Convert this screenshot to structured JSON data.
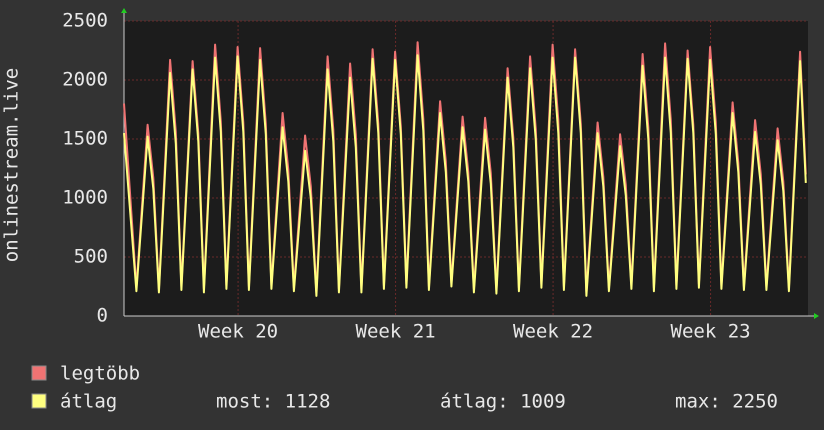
{
  "chart_data": {
    "type": "line",
    "y_label": "onlinestream.live",
    "x": [
      0,
      0.55,
      1.05,
      1.3,
      1.55,
      2.05,
      2.3,
      2.55,
      3.05,
      3.3,
      3.55,
      4.05,
      4.3,
      4.55,
      5.05,
      5.3,
      5.55,
      6.05,
      6.3,
      6.55,
      7.05,
      7.3,
      7.55,
      8.05,
      8.3,
      8.55,
      9.05,
      9.3,
      9.55,
      10.05,
      10.3,
      10.55,
      11.05,
      11.3,
      11.55,
      12.05,
      12.3,
      12.55,
      13.05,
      13.3,
      13.55,
      14.05,
      14.3,
      14.55,
      15.05,
      15.3,
      15.55,
      16.05,
      16.3,
      16.55,
      17.05,
      17.3,
      17.55,
      18.05,
      18.3,
      18.55,
      19.05,
      19.3,
      19.55,
      20.05,
      20.3,
      20.55,
      21.05,
      21.3,
      21.55,
      22.05,
      22.3,
      22.55,
      23.05,
      23.3,
      23.55,
      24.05,
      24.3,
      24.55,
      25.05,
      25.3,
      25.55,
      26.05,
      26.3,
      26.55,
      27.05,
      27.3,
      27.55,
      28.05,
      28.3,
      28.55,
      29.05,
      29.3,
      29.55,
      30.05,
      30.3
    ],
    "series": [
      {
        "name": "legtöbb",
        "color": "#f07373",
        "values": [
          1800,
          240,
          1620,
          1170,
          230,
          2170,
          1560,
          250,
          2160,
          1550,
          230,
          2300,
          1650,
          260,
          2280,
          1640,
          250,
          2270,
          1630,
          260,
          1720,
          1240,
          240,
          1530,
          1100,
          200,
          2200,
          1580,
          230,
          2140,
          1540,
          230,
          2260,
          1630,
          260,
          2240,
          1610,
          270,
          2320,
          1670,
          250,
          1820,
          1310,
          280,
          1690,
          1220,
          230,
          1680,
          1210,
          220,
          2100,
          1510,
          240,
          2200,
          1580,
          270,
          2300,
          1660,
          250,
          2260,
          1630,
          200,
          1640,
          1180,
          240,
          1540,
          1110,
          260,
          2220,
          1600,
          240,
          2310,
          1660,
          260,
          2250,
          1620,
          270,
          2280,
          1640,
          260,
          1810,
          1300,
          250,
          1660,
          1200,
          250,
          1590,
          1140,
          240,
          2240,
          1200
        ]
      },
      {
        "name": "átlag",
        "color": "#ffff80",
        "values": [
          1550,
          210,
          1520,
          1080,
          200,
          2060,
          1460,
          220,
          2090,
          1480,
          200,
          2190,
          1560,
          230,
          2200,
          1560,
          220,
          2170,
          1540,
          230,
          1600,
          1140,
          210,
          1400,
          1000,
          170,
          2090,
          1480,
          200,
          2020,
          1430,
          200,
          2180,
          1550,
          230,
          2170,
          1540,
          240,
          2210,
          1570,
          220,
          1720,
          1220,
          250,
          1600,
          1140,
          200,
          1580,
          1120,
          190,
          2020,
          1430,
          210,
          2100,
          1490,
          240,
          2190,
          1550,
          220,
          2190,
          1550,
          170,
          1550,
          1100,
          210,
          1440,
          1020,
          230,
          2120,
          1500,
          210,
          2190,
          1550,
          230,
          2180,
          1550,
          240,
          2170,
          1540,
          230,
          1720,
          1220,
          220,
          1560,
          1110,
          220,
          1490,
          1060,
          210,
          2160,
          1128
        ]
      }
    ],
    "xlim": [
      0,
      30.4
    ],
    "xticks": [
      {
        "value": 5.07,
        "label": "Week 20"
      },
      {
        "value": 12.07,
        "label": "Week 21"
      },
      {
        "value": 19.07,
        "label": "Week 22"
      },
      {
        "value": 26.07,
        "label": "Week 23"
      }
    ],
    "ylim": [
      0,
      2500
    ],
    "yticks": [
      0,
      500,
      1000,
      1500,
      2000,
      2500
    ],
    "grid": true,
    "stats": [
      "most: 1128",
      "átlag: 1009",
      "max: 2250"
    ]
  }
}
